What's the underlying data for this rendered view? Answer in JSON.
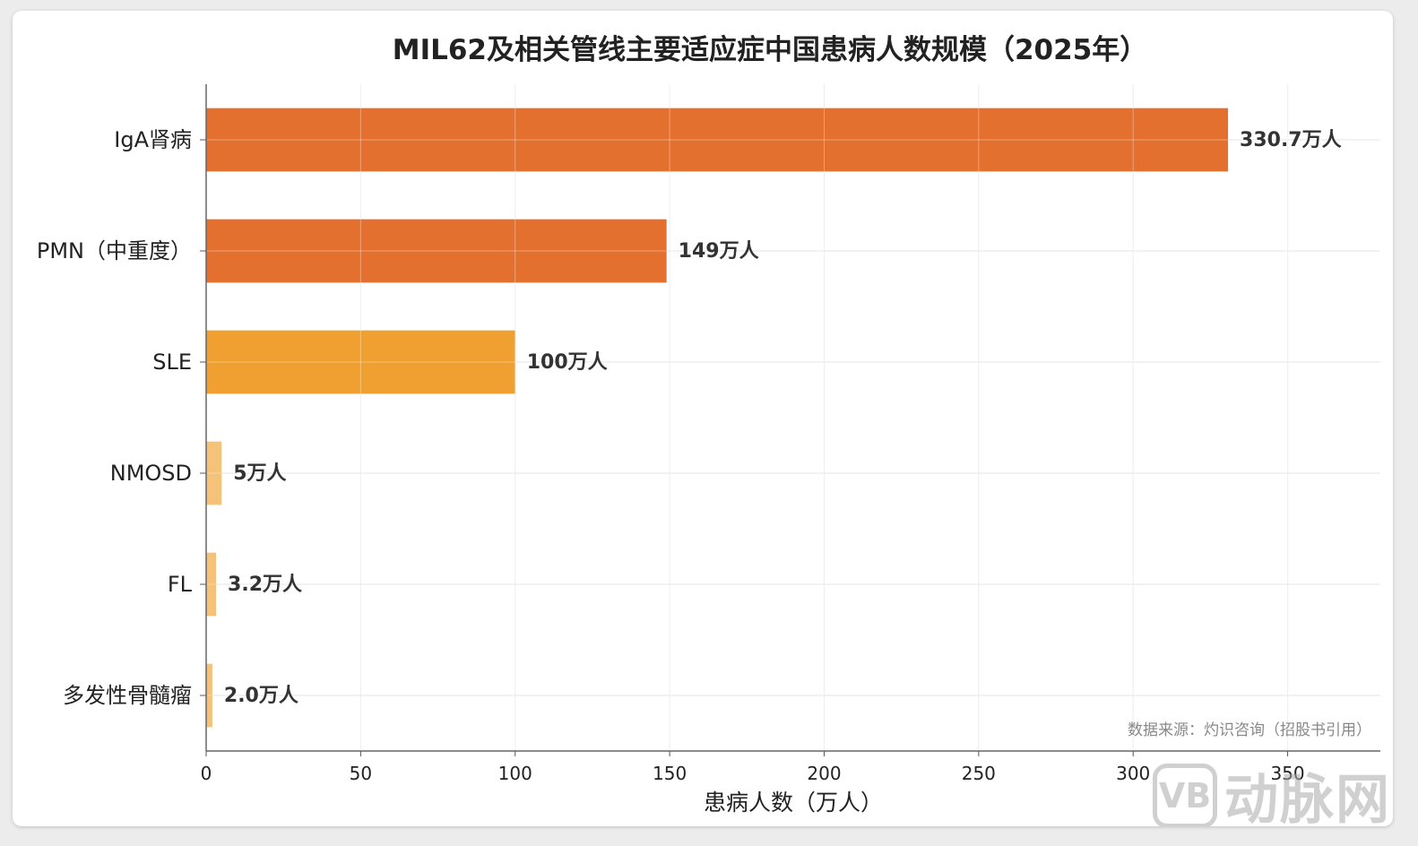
{
  "chart_data": {
    "type": "bar",
    "orientation": "horizontal",
    "title": "MIL62及相关管线主要适应症中国患病人数规模（2025年）",
    "xlabel": "患病人数（万人）",
    "ylabel": "",
    "xlim": [
      0,
      380
    ],
    "xticks": [
      0,
      50,
      100,
      150,
      200,
      250,
      300,
      350
    ],
    "grid": true,
    "categories": [
      "IgA肾病",
      "PMN（中重度）",
      "SLE",
      "NMOSD",
      "FL",
      "多发性骨髓瘤"
    ],
    "values": [
      330.7,
      149,
      100,
      5,
      3.2,
      2.0
    ],
    "data_labels": [
      "330.7万人",
      "149万人",
      "100万人",
      "5万人",
      "3.2万人",
      "2.0万人"
    ],
    "colors": [
      "#e3702e",
      "#e3702e",
      "#f0a030",
      "#f5c27a",
      "#f5c27a",
      "#f5c27a"
    ]
  },
  "source": "数据来源：灼识咨询（招股书引用）",
  "watermark": {
    "logo": "VB",
    "text": "动脉网"
  }
}
